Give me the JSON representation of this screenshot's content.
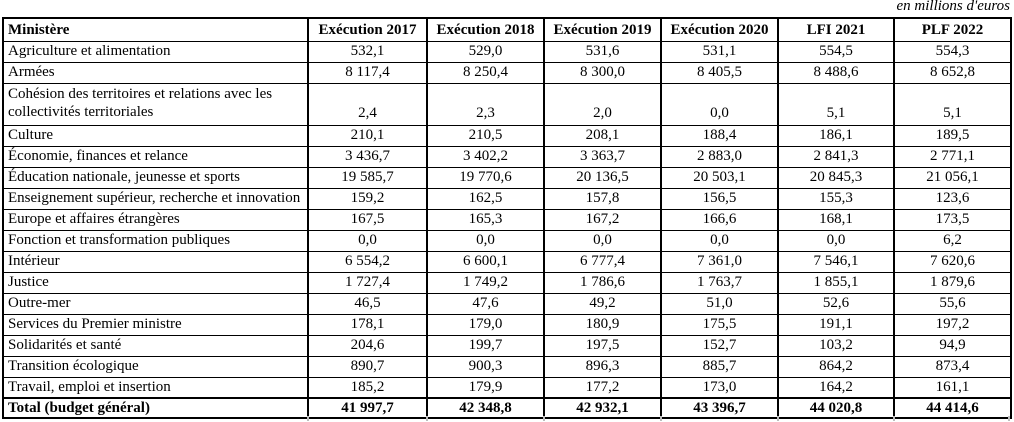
{
  "note": "en millions d'euros",
  "colors": {
    "text": "#000000",
    "background": "#ffffff",
    "table_border": "#000000",
    "gridline_remnant": "#bdbdbd"
  },
  "table": {
    "columns": [
      "Ministère",
      "Exécution 2017",
      "Exécution 2018",
      "Exécution 2019",
      "Exécution 2020",
      "LFI 2021",
      "PLF 2022"
    ],
    "rows": [
      {
        "label": "Agriculture et alimentation",
        "values": [
          "532,1",
          "529,0",
          "531,6",
          "531,1",
          "554,5",
          "554,3"
        ]
      },
      {
        "label": "Armées",
        "values": [
          "8 117,4",
          "8 250,4",
          "8 300,0",
          "8 405,5",
          "8 488,6",
          "8 652,8"
        ]
      },
      {
        "label": "Cohésion des territoires et relations avec les collectivités territoriales",
        "tall": true,
        "values": [
          "2,4",
          "2,3",
          "2,0",
          "0,0",
          "5,1",
          "5,1"
        ]
      },
      {
        "label": "Culture",
        "values": [
          "210,1",
          "210,5",
          "208,1",
          "188,4",
          "186,1",
          "189,5"
        ]
      },
      {
        "label": "Économie, finances et relance",
        "values": [
          "3 436,7",
          "3 402,2",
          "3 363,7",
          "2 883,0",
          "2 841,3",
          "2 771,1"
        ]
      },
      {
        "label": "Éducation nationale, jeunesse et sports",
        "values": [
          "19 585,7",
          "19 770,6",
          "20 136,5",
          "20 503,1",
          "20 845,3",
          "21 056,1"
        ]
      },
      {
        "label": "Enseignement supérieur, recherche et innovation",
        "values": [
          "159,2",
          "162,5",
          "157,8",
          "156,5",
          "155,3",
          "123,6"
        ]
      },
      {
        "label": "Europe et affaires étrangères",
        "values": [
          "167,5",
          "165,3",
          "167,2",
          "166,6",
          "168,1",
          "173,5"
        ]
      },
      {
        "label": "Fonction et transformation publiques",
        "values": [
          "0,0",
          "0,0",
          "0,0",
          "0,0",
          "0,0",
          "6,2"
        ]
      },
      {
        "label": "Intérieur",
        "values": [
          "6 554,2",
          "6 600,1",
          "6 777,4",
          "7 361,0",
          "7 546,1",
          "7 620,6"
        ]
      },
      {
        "label": "Justice",
        "values": [
          "1 727,4",
          "1 749,2",
          "1 786,6",
          "1 763,7",
          "1 855,1",
          "1 879,6"
        ]
      },
      {
        "label": "Outre-mer",
        "values": [
          "46,5",
          "47,6",
          "49,2",
          "51,0",
          "52,6",
          "55,6"
        ]
      },
      {
        "label": "Services du Premier ministre",
        "values": [
          "178,1",
          "179,0",
          "180,9",
          "175,5",
          "191,1",
          "197,2"
        ]
      },
      {
        "label": "Solidarités et santé",
        "values": [
          "204,6",
          "199,7",
          "197,5",
          "152,7",
          "103,2",
          "94,9"
        ]
      },
      {
        "label": "Transition écologique",
        "values": [
          "890,7",
          "900,3",
          "896,3",
          "885,7",
          "864,2",
          "873,4"
        ]
      },
      {
        "label": "Travail, emploi et insertion",
        "values": [
          "185,2",
          "179,9",
          "177,2",
          "173,0",
          "164,2",
          "161,1"
        ]
      }
    ],
    "total": {
      "label": "Total (budget général)",
      "values": [
        "41 997,7",
        "42 348,8",
        "42 932,1",
        "43 396,7",
        "44 020,8",
        "44 414,6"
      ]
    }
  }
}
